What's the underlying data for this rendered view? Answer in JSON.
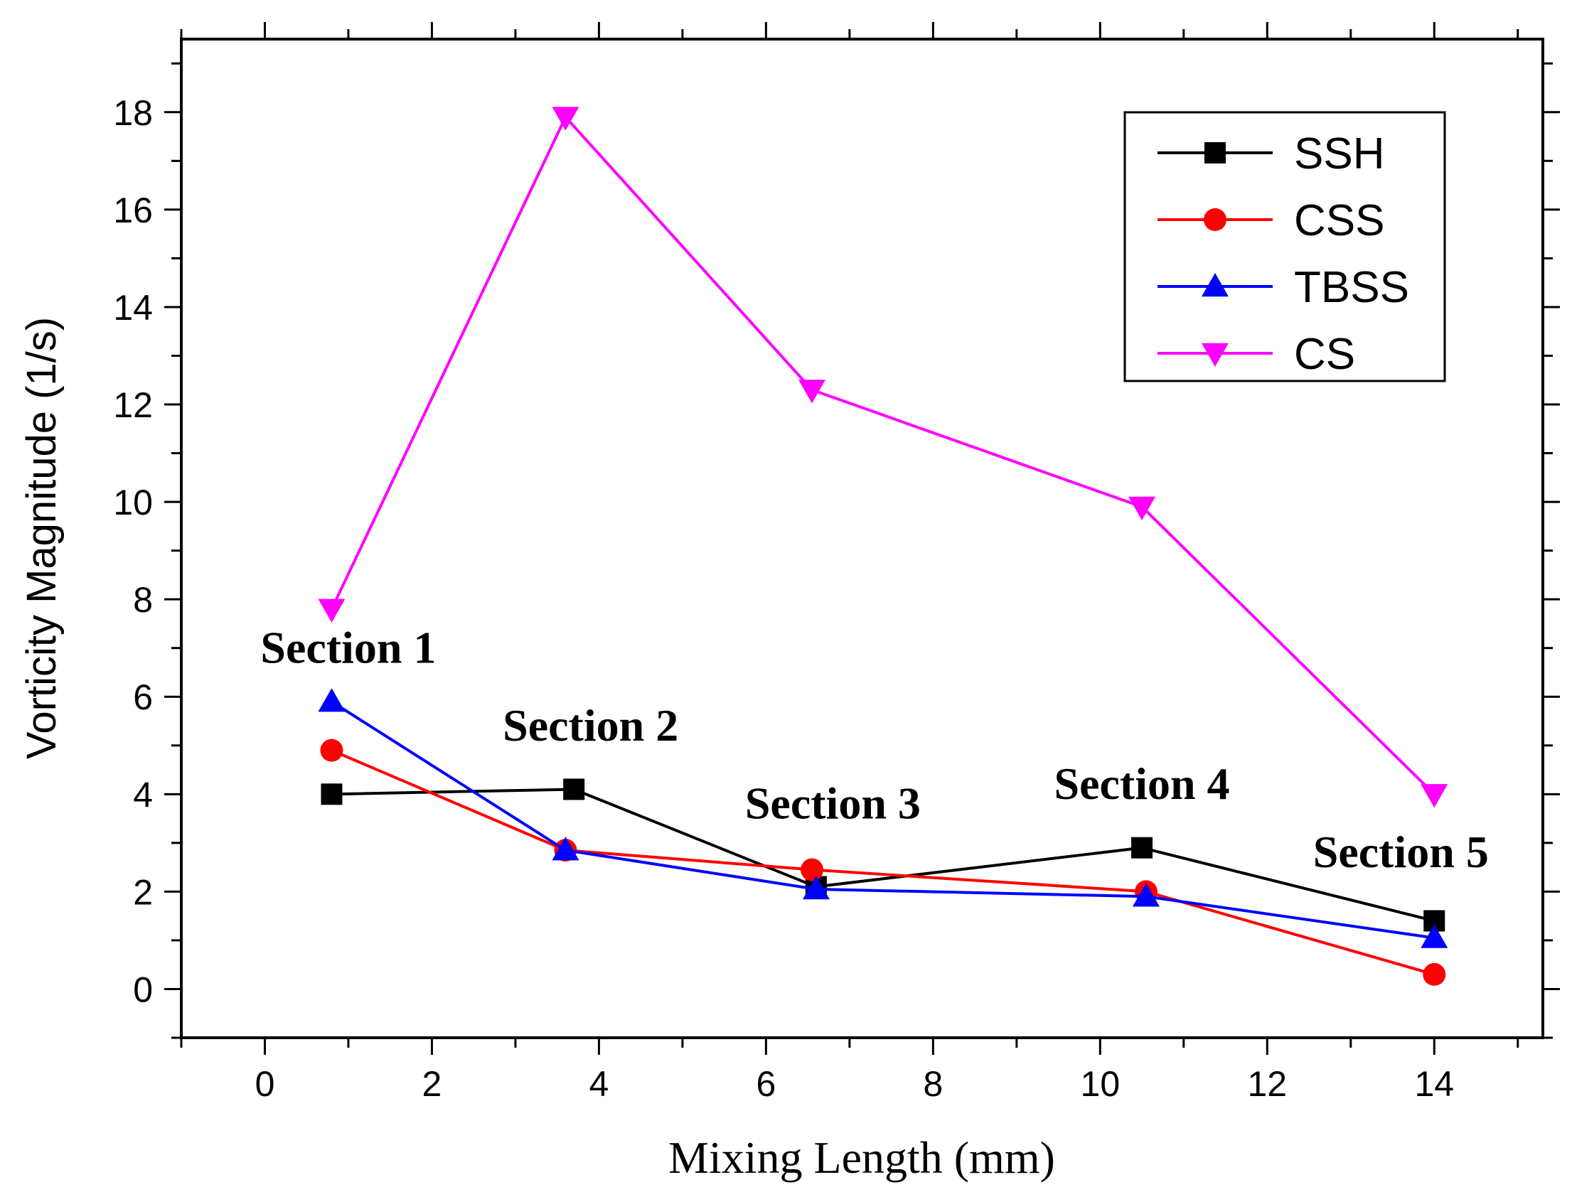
{
  "chart_data": {
    "type": "line",
    "xlabel": "Mixing Length (mm)",
    "ylabel": "Vorticity Magnitude (1/s)",
    "xlim": [
      -1,
      15.3
    ],
    "ylim": [
      -1,
      19.5
    ],
    "xticks": [
      0,
      2,
      4,
      6,
      8,
      10,
      12,
      14
    ],
    "yticks": [
      0,
      2,
      4,
      6,
      8,
      10,
      12,
      14,
      16,
      18
    ],
    "legend_position": "top-right",
    "series": [
      {
        "name": "SSH",
        "color": "#000000",
        "marker": "square",
        "x": [
          0.8,
          3.7,
          6.6,
          10.5,
          14.0
        ],
        "y": [
          4.0,
          4.1,
          2.1,
          2.9,
          1.4
        ]
      },
      {
        "name": "CSS",
        "color": "#ff0000",
        "marker": "circle",
        "x": [
          0.8,
          3.6,
          6.55,
          10.55,
          14.0
        ],
        "y": [
          4.9,
          2.85,
          2.45,
          2.0,
          0.3
        ]
      },
      {
        "name": "TBSS",
        "color": "#0000ff",
        "marker": "triangle-up",
        "x": [
          0.8,
          3.6,
          6.6,
          10.55,
          14.0
        ],
        "y": [
          5.9,
          2.85,
          2.05,
          1.9,
          1.05
        ]
      },
      {
        "name": "CS",
        "color": "#ff00ff",
        "marker": "triangle-down",
        "x": [
          0.8,
          3.6,
          6.55,
          10.5,
          14.0
        ],
        "y": [
          7.8,
          17.9,
          12.3,
          9.9,
          4.0
        ]
      }
    ],
    "annotations": [
      {
        "text": "Section 1",
        "x": 1.0,
        "y": 6.7
      },
      {
        "text": "Section 2",
        "x": 3.9,
        "y": 5.1
      },
      {
        "text": "Section 3",
        "x": 6.8,
        "y": 3.5
      },
      {
        "text": "Section 4",
        "x": 10.5,
        "y": 3.9
      },
      {
        "text": "Section 5",
        "x": 13.6,
        "y": 2.5
      }
    ]
  }
}
